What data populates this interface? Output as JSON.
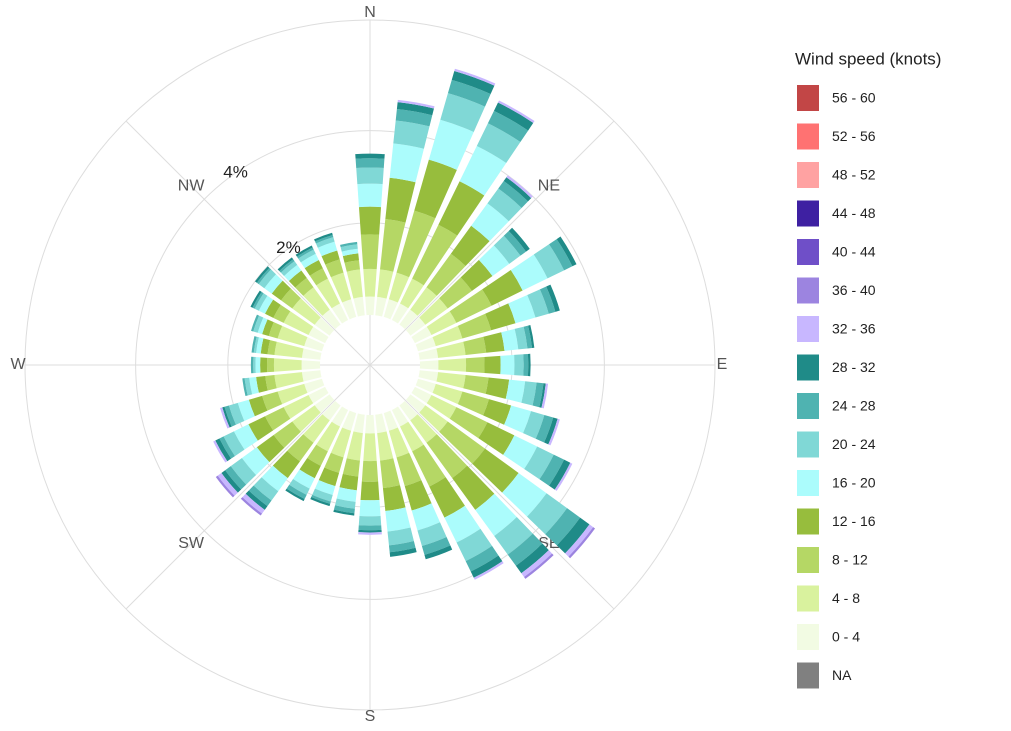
{
  "chart_data": {
    "type": "windrose",
    "legend_title": "Wind speed (knots)",
    "x": [
      0,
      10,
      20,
      30,
      40,
      50,
      60,
      70,
      80,
      90,
      100,
      110,
      120,
      130,
      140,
      150,
      160,
      170,
      180,
      190,
      200,
      210,
      220,
      230,
      240,
      250,
      260,
      270,
      280,
      290,
      300,
      310,
      320,
      330,
      340,
      350
    ],
    "xlim": [
      0,
      360
    ],
    "xticks": [
      {
        "value": 0,
        "label": "N"
      },
      {
        "value": 45,
        "label": "NE"
      },
      {
        "value": 90,
        "label": "E"
      },
      {
        "value": 135,
        "label": "SE"
      },
      {
        "value": 180,
        "label": "S"
      },
      {
        "value": 225,
        "label": "SW"
      },
      {
        "value": 270,
        "label": "W"
      },
      {
        "value": 315,
        "label": "NW"
      }
    ],
    "ylim": [
      0,
      6.4
    ],
    "yticks": [
      {
        "value": 2,
        "label": "2%"
      },
      {
        "value": 4,
        "label": "4%"
      }
    ],
    "grid": true,
    "series": [
      {
        "name": "0 - 4",
        "color": "#f2fbe3",
        "values": [
          0.4,
          0.4,
          0.4,
          0.4,
          0.4,
          0.4,
          0.4,
          0.4,
          0.4,
          0.4,
          0.4,
          0.4,
          0.4,
          0.4,
          0.4,
          0.4,
          0.4,
          0.4,
          0.4,
          0.4,
          0.4,
          0.4,
          0.4,
          0.4,
          0.4,
          0.4,
          0.4,
          0.4,
          0.4,
          0.4,
          0.4,
          0.4,
          0.4,
          0.4,
          0.4,
          0.4
        ]
      },
      {
        "name": "4 - 8",
        "color": "#d9f29e",
        "values": [
          0.6,
          0.6,
          0.6,
          0.6,
          0.6,
          0.6,
          0.6,
          0.6,
          0.6,
          0.6,
          0.6,
          0.6,
          0.6,
          0.6,
          0.6,
          0.6,
          0.6,
          0.6,
          0.6,
          0.6,
          0.6,
          0.6,
          0.6,
          0.6,
          0.6,
          0.6,
          0.6,
          0.6,
          0.6,
          0.6,
          0.6,
          0.6,
          0.6,
          0.6,
          0.6,
          0.6
        ]
      },
      {
        "name": "8 - 12",
        "color": "#b5d765",
        "values": [
          0.75,
          1.1,
          1.4,
          1.3,
          0.9,
          0.65,
          0.85,
          0.65,
          0.45,
          0.4,
          0.5,
          0.6,
          0.75,
          1.0,
          0.95,
          0.85,
          0.65,
          0.6,
          0.45,
          0.35,
          0.35,
          0.35,
          0.5,
          0.5,
          0.45,
          0.35,
          0.2,
          0.15,
          0.15,
          0.2,
          0.25,
          0.3,
          0.25,
          0.25,
          0.3,
          0.2
        ]
      },
      {
        "name": "12 - 16",
        "color": "#97bd3d",
        "values": [
          0.6,
          0.9,
          1.15,
          1.05,
          0.75,
          0.55,
          0.75,
          0.55,
          0.4,
          0.35,
          0.45,
          0.5,
          0.65,
          0.9,
          0.85,
          0.75,
          0.55,
          0.5,
          0.4,
          0.3,
          0.3,
          0.3,
          0.45,
          0.45,
          0.4,
          0.3,
          0.2,
          0.15,
          0.15,
          0.15,
          0.2,
          0.25,
          0.2,
          0.2,
          0.2,
          0.15
        ]
      },
      {
        "name": "16 - 20",
        "color": "#abfcfc",
        "values": [
          0.5,
          0.75,
          0.9,
          0.85,
          0.6,
          0.45,
          0.6,
          0.45,
          0.3,
          0.3,
          0.35,
          0.45,
          0.55,
          0.75,
          0.7,
          0.6,
          0.45,
          0.45,
          0.35,
          0.25,
          0.2,
          0.25,
          0.35,
          0.4,
          0.35,
          0.25,
          0.15,
          0.1,
          0.1,
          0.1,
          0.15,
          0.2,
          0.15,
          0.15,
          0.2,
          0.1
        ]
      },
      {
        "name": "20 - 24",
        "color": "#80d8d6",
        "values": [
          0.35,
          0.5,
          0.6,
          0.55,
          0.4,
          0.3,
          0.4,
          0.3,
          0.2,
          0.2,
          0.25,
          0.3,
          0.4,
          0.55,
          0.5,
          0.45,
          0.35,
          0.3,
          0.2,
          0.15,
          0.15,
          0.15,
          0.25,
          0.3,
          0.25,
          0.2,
          0.1,
          0.05,
          0.05,
          0.1,
          0.1,
          0.15,
          0.1,
          0.1,
          0.1,
          0.1
        ]
      },
      {
        "name": "24 - 28",
        "color": "#4fb3b1",
        "values": [
          0.2,
          0.25,
          0.3,
          0.3,
          0.2,
          0.15,
          0.2,
          0.15,
          0.1,
          0.1,
          0.15,
          0.2,
          0.25,
          0.35,
          0.3,
          0.25,
          0.2,
          0.15,
          0.1,
          0.1,
          0.05,
          0.1,
          0.15,
          0.15,
          0.1,
          0.1,
          0.05,
          0.05,
          0.05,
          0.05,
          0.05,
          0.05,
          0.05,
          0.05,
          0.05,
          0.05
        ]
      },
      {
        "name": "28 - 32",
        "color": "#1f8b88",
        "values": [
          0.1,
          0.15,
          0.2,
          0.2,
          0.1,
          0.1,
          0.1,
          0.1,
          0.05,
          0.05,
          0.05,
          0.1,
          0.15,
          0.25,
          0.2,
          0.15,
          0.1,
          0.1,
          0.05,
          0.05,
          0.05,
          0.05,
          0.1,
          0.1,
          0.1,
          0.05,
          0,
          0,
          0,
          0,
          0.05,
          0.05,
          0.05,
          0.05,
          0.05,
          0
        ]
      },
      {
        "name": "32 - 36",
        "color": "#c8b7ff",
        "values": [
          0,
          0.05,
          0.05,
          0.05,
          0.05,
          0,
          0,
          0,
          0,
          0,
          0.05,
          0.05,
          0.05,
          0.1,
          0.1,
          0.05,
          0,
          0,
          0.05,
          0,
          0,
          0,
          0.1,
          0.1,
          0.05,
          0.05,
          0,
          0,
          0,
          0,
          0,
          0,
          0,
          0,
          0,
          0
        ]
      },
      {
        "name": "36 - 40",
        "color": "#9c84e0",
        "values": [
          0,
          0,
          0,
          0,
          0,
          0,
          0,
          0,
          0,
          0,
          0,
          0,
          0,
          0.05,
          0.05,
          0,
          0,
          0,
          0,
          0,
          0,
          0,
          0.05,
          0.05,
          0,
          0,
          0,
          0,
          0,
          0,
          0,
          0,
          0,
          0,
          0,
          0
        ]
      },
      {
        "name": "40 - 44",
        "color": "#6f4fc8",
        "values": [
          0,
          0,
          0,
          0,
          0,
          0,
          0,
          0,
          0,
          0,
          0,
          0,
          0,
          0,
          0,
          0,
          0,
          0,
          0,
          0,
          0,
          0,
          0,
          0,
          0,
          0,
          0,
          0,
          0,
          0,
          0,
          0,
          0,
          0,
          0,
          0
        ]
      },
      {
        "name": "44 - 48",
        "color": "#3e20a2",
        "values": [
          0,
          0,
          0,
          0,
          0,
          0,
          0,
          0,
          0,
          0,
          0,
          0,
          0,
          0,
          0,
          0,
          0,
          0,
          0,
          0,
          0,
          0,
          0,
          0,
          0,
          0,
          0,
          0,
          0,
          0,
          0,
          0,
          0,
          0,
          0,
          0
        ]
      },
      {
        "name": "48 - 52",
        "color": "#ffa2a2",
        "values": [
          0,
          0,
          0,
          0,
          0,
          0,
          0,
          0,
          0,
          0,
          0,
          0,
          0,
          0,
          0,
          0,
          0,
          0,
          0,
          0,
          0,
          0,
          0,
          0,
          0,
          0,
          0,
          0,
          0,
          0,
          0,
          0,
          0,
          0,
          0,
          0
        ]
      },
      {
        "name": "52 - 56",
        "color": "#ff7272",
        "values": [
          0,
          0,
          0,
          0,
          0,
          0,
          0,
          0,
          0,
          0,
          0,
          0,
          0,
          0,
          0,
          0,
          0,
          0,
          0,
          0,
          0,
          0,
          0,
          0,
          0,
          0,
          0,
          0,
          0,
          0,
          0,
          0,
          0,
          0,
          0,
          0
        ]
      },
      {
        "name": "56 - 60",
        "color": "#c24646",
        "values": [
          0,
          0,
          0,
          0,
          0,
          0,
          0,
          0,
          0,
          0,
          0,
          0,
          0,
          0,
          0,
          0,
          0,
          0,
          0,
          0,
          0,
          0,
          0,
          0,
          0,
          0,
          0,
          0,
          0,
          0,
          0,
          0,
          0,
          0,
          0,
          0
        ]
      },
      {
        "name": "NA",
        "color": "#808080",
        "values": [
          0,
          0,
          0,
          0,
          0,
          0,
          0,
          0,
          0,
          0,
          0,
          0,
          0,
          0,
          0,
          0,
          0,
          0,
          0,
          0,
          0,
          0,
          0,
          0,
          0,
          0,
          0,
          0,
          0,
          0,
          0,
          0,
          0,
          0,
          0,
          0
        ]
      }
    ]
  }
}
